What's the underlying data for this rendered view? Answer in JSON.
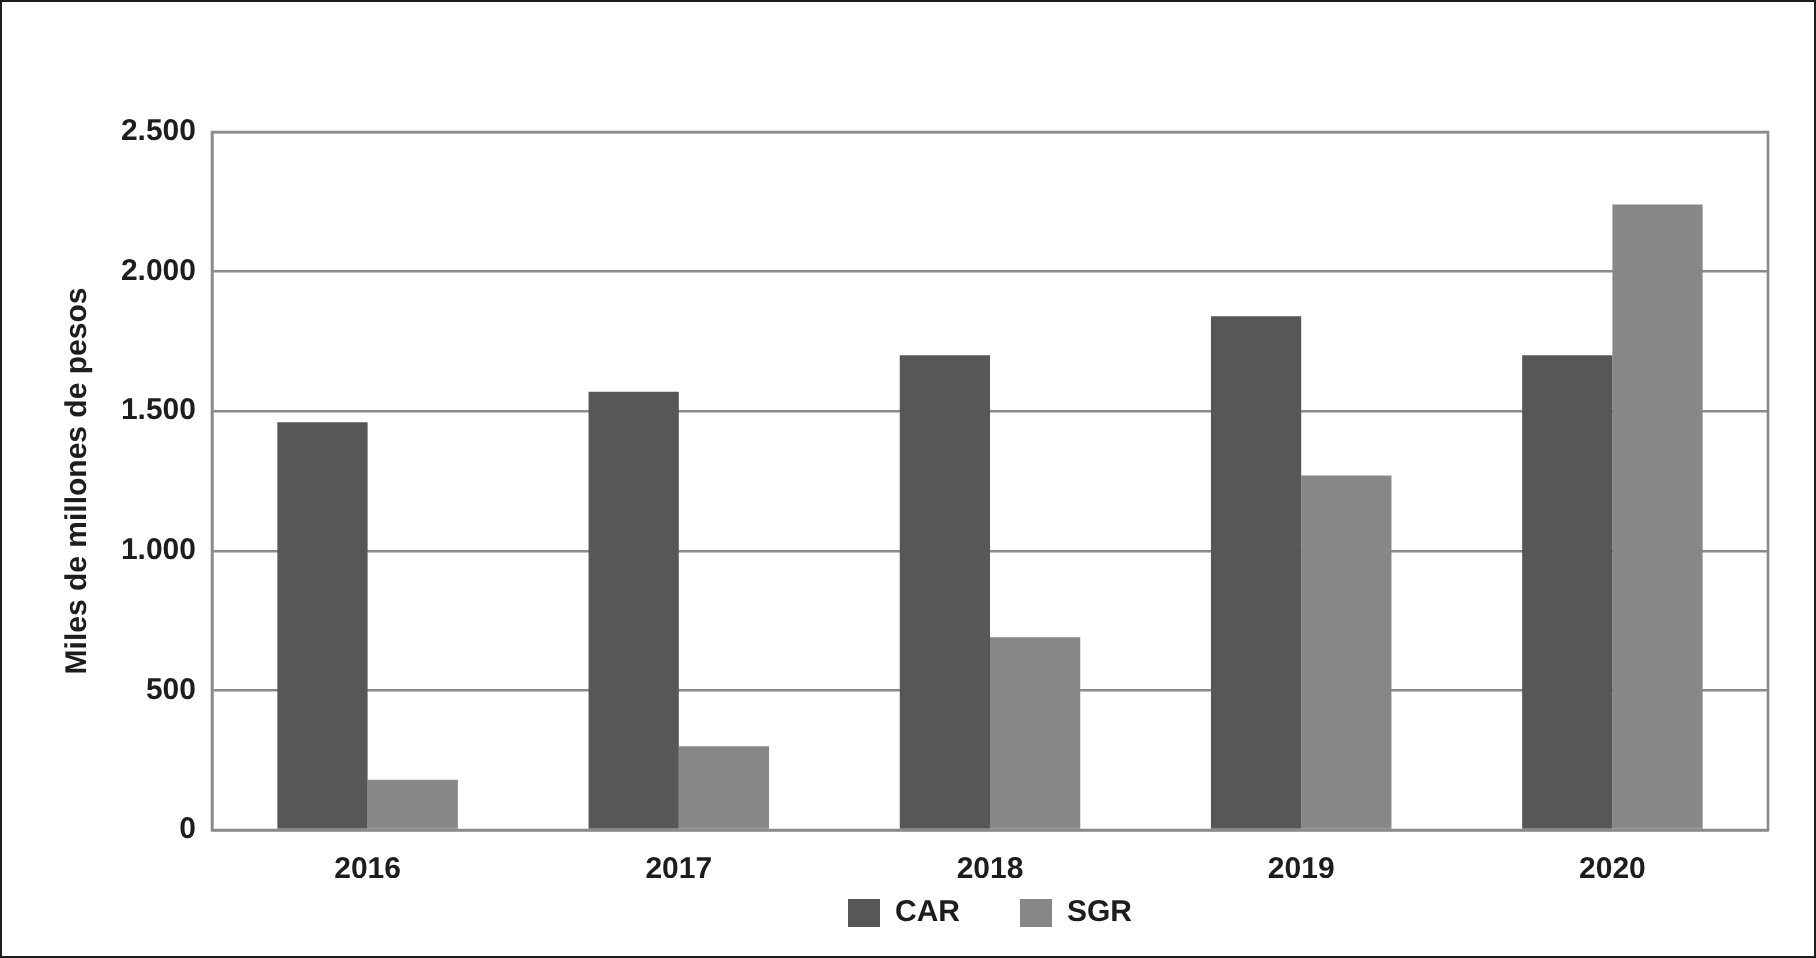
{
  "chart_data": {
    "type": "bar",
    "categories": [
      "2016",
      "2017",
      "2018",
      "2019",
      "2020"
    ],
    "series": [
      {
        "name": "CAR",
        "color": "#575756",
        "values": [
          1460,
          1570,
          1700,
          1840,
          1700
        ]
      },
      {
        "name": "SGR",
        "color": "#878787",
        "values": [
          180,
          300,
          690,
          1270,
          2240
        ]
      }
    ],
    "ylabel": "Miles de millones de pesos",
    "ylim": [
      0,
      2500
    ],
    "yticks": [
      0,
      500,
      {
        "value": 1000,
        "label": "1.000"
      },
      {
        "value": 1500,
        "label": "1.500"
      },
      {
        "value": 2000,
        "label": "2.000"
      },
      {
        "value": 2500,
        "label": "2.500"
      }
    ],
    "grid": "y",
    "legend": "bottom"
  }
}
